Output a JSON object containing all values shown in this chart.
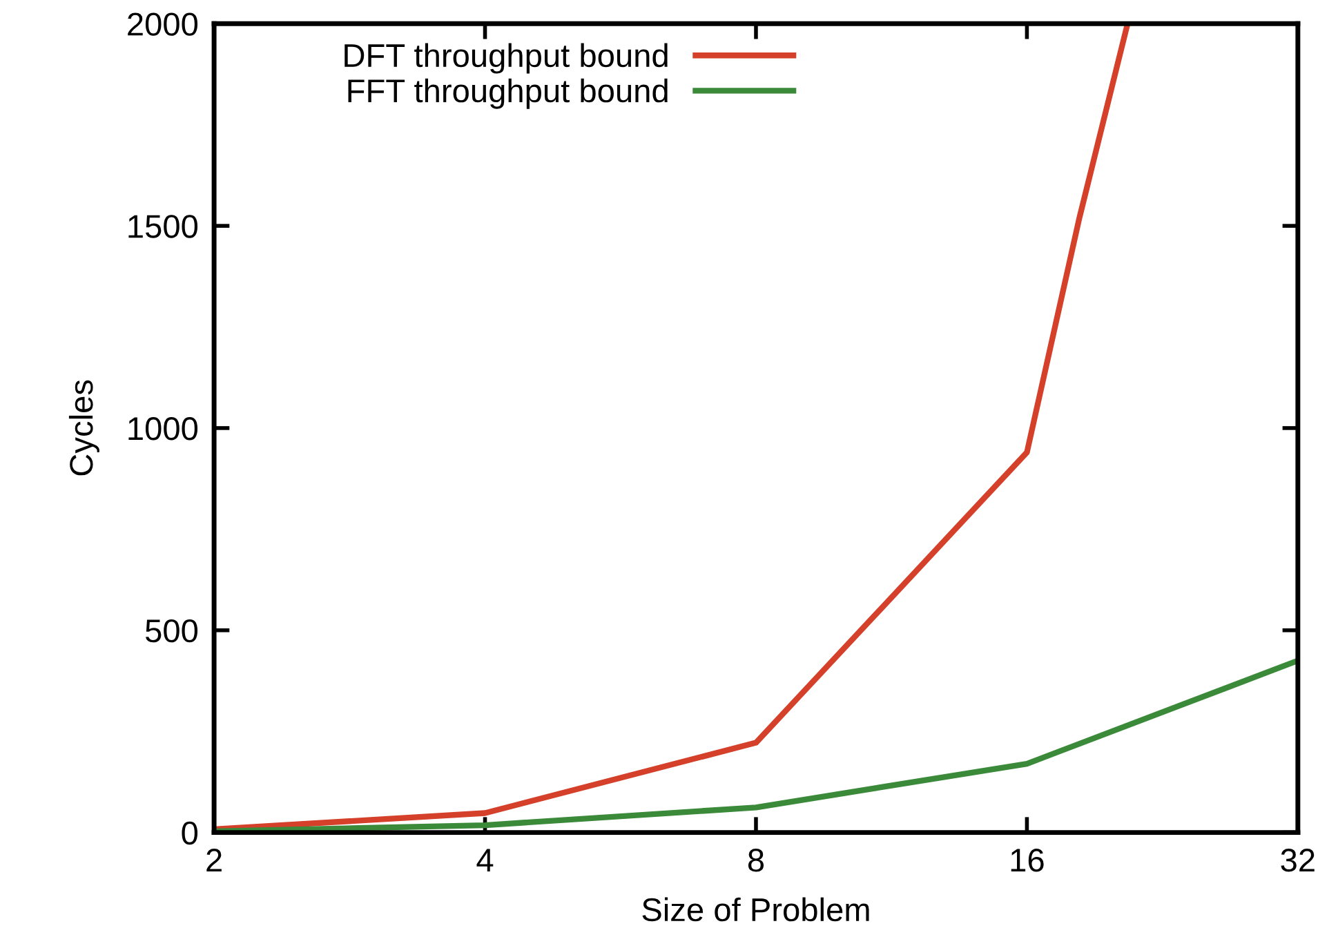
{
  "chart_data": {
    "type": "line",
    "xlabel": "Size of Problem",
    "ylabel": "Cycles",
    "log": "x",
    "xlim": [
      2,
      32
    ],
    "xticks": [
      2,
      4,
      8,
      16,
      32
    ],
    "ylim": [
      0,
      2000
    ],
    "yticks": [
      0,
      500,
      1000,
      1500,
      2000
    ],
    "grid": false,
    "legend": "top left",
    "line_style": "solid",
    "marker": "none",
    "series": [
      {
        "name": "DFT throughput bound",
        "color": "#d4402a",
        "x": [
          2,
          4,
          8,
          16,
          18.3,
          20.7
        ],
        "values": [
          8,
          48,
          222,
          940,
          1520,
          2000
        ]
      },
      {
        "name": "FFT throughput bound",
        "color": "#3a8a3a",
        "x": [
          2,
          4,
          8,
          16,
          32
        ],
        "values": [
          3,
          18,
          62,
          170,
          425
        ]
      }
    ]
  }
}
